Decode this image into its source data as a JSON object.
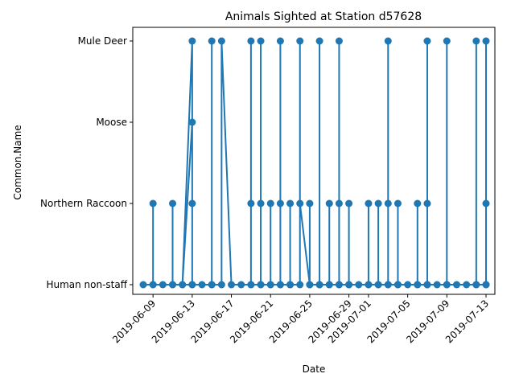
{
  "chart_data": {
    "type": "line",
    "title": "Animals Sighted at Station d57628",
    "xlabel": "Date",
    "ylabel": "Common.Name",
    "categories": [
      "Human non-staff",
      "Northern Raccoon",
      "Moose",
      "Mule Deer"
    ],
    "x_ticks": [
      "2019-06-09",
      "2019-06-13",
      "2019-06-17",
      "2019-06-21",
      "2019-06-25",
      "2019-06-29",
      "2019-07-01",
      "2019-07-05",
      "2019-07-09",
      "2019-07-13"
    ],
    "xlim": [
      "2019-06-07",
      "2019-07-14"
    ],
    "grid": false,
    "series": [
      {
        "color": "#1f77b4",
        "marker": "circle",
        "points": [
          [
            "2019-06-08",
            "Human non-staff"
          ],
          [
            "2019-06-09",
            "Human non-staff"
          ],
          [
            "2019-06-09",
            "Northern Raccoon"
          ],
          [
            "2019-06-09",
            "Human non-staff"
          ],
          [
            "2019-06-10",
            "Human non-staff"
          ],
          [
            "2019-06-11",
            "Human non-staff"
          ],
          [
            "2019-06-11",
            "Northern Raccoon"
          ],
          [
            "2019-06-11",
            "Human non-staff"
          ],
          [
            "2019-06-12",
            "Human non-staff"
          ],
          [
            "2019-06-13",
            "Mule Deer"
          ],
          [
            "2019-06-13",
            "Human non-staff"
          ],
          [
            "2019-06-13",
            "Northern Raccoon"
          ],
          [
            "2019-06-13",
            "Moose"
          ],
          [
            "2019-06-12",
            "Human non-staff"
          ],
          [
            "2019-06-13",
            "Human non-staff"
          ],
          [
            "2019-06-14",
            "Human non-staff"
          ],
          [
            "2019-06-15",
            "Human non-staff"
          ],
          [
            "2019-06-15",
            "Mule Deer"
          ],
          [
            "2019-06-15",
            "Human non-staff"
          ],
          [
            "2019-06-16",
            "Human non-staff"
          ],
          [
            "2019-06-16",
            "Mule Deer"
          ],
          [
            "2019-06-17",
            "Human non-staff"
          ],
          [
            "2019-06-18",
            "Human non-staff"
          ],
          [
            "2019-06-19",
            "Human non-staff"
          ],
          [
            "2019-06-19",
            "Mule Deer"
          ],
          [
            "2019-06-19",
            "Northern Raccoon"
          ],
          [
            "2019-06-19",
            "Human non-staff"
          ],
          [
            "2019-06-20",
            "Human non-staff"
          ],
          [
            "2019-06-20",
            "Mule Deer"
          ],
          [
            "2019-06-20",
            "Northern Raccoon"
          ],
          [
            "2019-06-20",
            "Human non-staff"
          ],
          [
            "2019-06-21",
            "Human non-staff"
          ],
          [
            "2019-06-21",
            "Northern Raccoon"
          ],
          [
            "2019-06-21",
            "Human non-staff"
          ],
          [
            "2019-06-22",
            "Human non-staff"
          ],
          [
            "2019-06-22",
            "Mule Deer"
          ],
          [
            "2019-06-22",
            "Northern Raccoon"
          ],
          [
            "2019-06-22",
            "Human non-staff"
          ],
          [
            "2019-06-23",
            "Human non-staff"
          ],
          [
            "2019-06-23",
            "Northern Raccoon"
          ],
          [
            "2019-06-23",
            "Human non-staff"
          ],
          [
            "2019-06-24",
            "Human non-staff"
          ],
          [
            "2019-06-24",
            "Mule Deer"
          ],
          [
            "2019-06-24",
            "Northern Raccoon"
          ],
          [
            "2019-06-25",
            "Human non-staff"
          ],
          [
            "2019-06-25",
            "Northern Raccoon"
          ],
          [
            "2019-06-25",
            "Human non-staff"
          ],
          [
            "2019-06-26",
            "Human non-staff"
          ],
          [
            "2019-06-26",
            "Mule Deer"
          ],
          [
            "2019-06-26",
            "Human non-staff"
          ],
          [
            "2019-06-27",
            "Human non-staff"
          ],
          [
            "2019-06-27",
            "Northern Raccoon"
          ],
          [
            "2019-06-27",
            "Human non-staff"
          ],
          [
            "2019-06-28",
            "Human non-staff"
          ],
          [
            "2019-06-28",
            "Mule Deer"
          ],
          [
            "2019-06-28",
            "Northern Raccoon"
          ],
          [
            "2019-06-28",
            "Human non-staff"
          ],
          [
            "2019-06-29",
            "Human non-staff"
          ],
          [
            "2019-06-29",
            "Northern Raccoon"
          ],
          [
            "2019-06-29",
            "Human non-staff"
          ],
          [
            "2019-06-30",
            "Human non-staff"
          ],
          [
            "2019-07-01",
            "Human non-staff"
          ],
          [
            "2019-07-01",
            "Northern Raccoon"
          ],
          [
            "2019-07-01",
            "Human non-staff"
          ],
          [
            "2019-07-02",
            "Human non-staff"
          ],
          [
            "2019-07-02",
            "Northern Raccoon"
          ],
          [
            "2019-07-02",
            "Human non-staff"
          ],
          [
            "2019-07-03",
            "Human non-staff"
          ],
          [
            "2019-07-03",
            "Northern Raccoon"
          ],
          [
            "2019-07-03",
            "Mule Deer"
          ],
          [
            "2019-07-03",
            "Human non-staff"
          ],
          [
            "2019-07-04",
            "Human non-staff"
          ],
          [
            "2019-07-04",
            "Northern Raccoon"
          ],
          [
            "2019-07-04",
            "Human non-staff"
          ],
          [
            "2019-07-05",
            "Human non-staff"
          ],
          [
            "2019-07-06",
            "Human non-staff"
          ],
          [
            "2019-07-06",
            "Northern Raccoon"
          ],
          [
            "2019-07-06",
            "Human non-staff"
          ],
          [
            "2019-07-07",
            "Human non-staff"
          ],
          [
            "2019-07-07",
            "Mule Deer"
          ],
          [
            "2019-07-07",
            "Northern Raccoon"
          ],
          [
            "2019-07-07",
            "Human non-staff"
          ],
          [
            "2019-07-08",
            "Human non-staff"
          ],
          [
            "2019-07-09",
            "Human non-staff"
          ],
          [
            "2019-07-09",
            "Mule Deer"
          ],
          [
            "2019-07-09",
            "Human non-staff"
          ],
          [
            "2019-07-10",
            "Human non-staff"
          ],
          [
            "2019-07-11",
            "Human non-staff"
          ],
          [
            "2019-07-12",
            "Human non-staff"
          ],
          [
            "2019-07-12",
            "Mule Deer"
          ],
          [
            "2019-07-12",
            "Human non-staff"
          ],
          [
            "2019-07-13",
            "Human non-staff"
          ],
          [
            "2019-07-13",
            "Mule Deer"
          ],
          [
            "2019-07-13",
            "Human non-staff"
          ],
          [
            "2019-07-13",
            "Northern Raccoon"
          ]
        ]
      }
    ]
  }
}
